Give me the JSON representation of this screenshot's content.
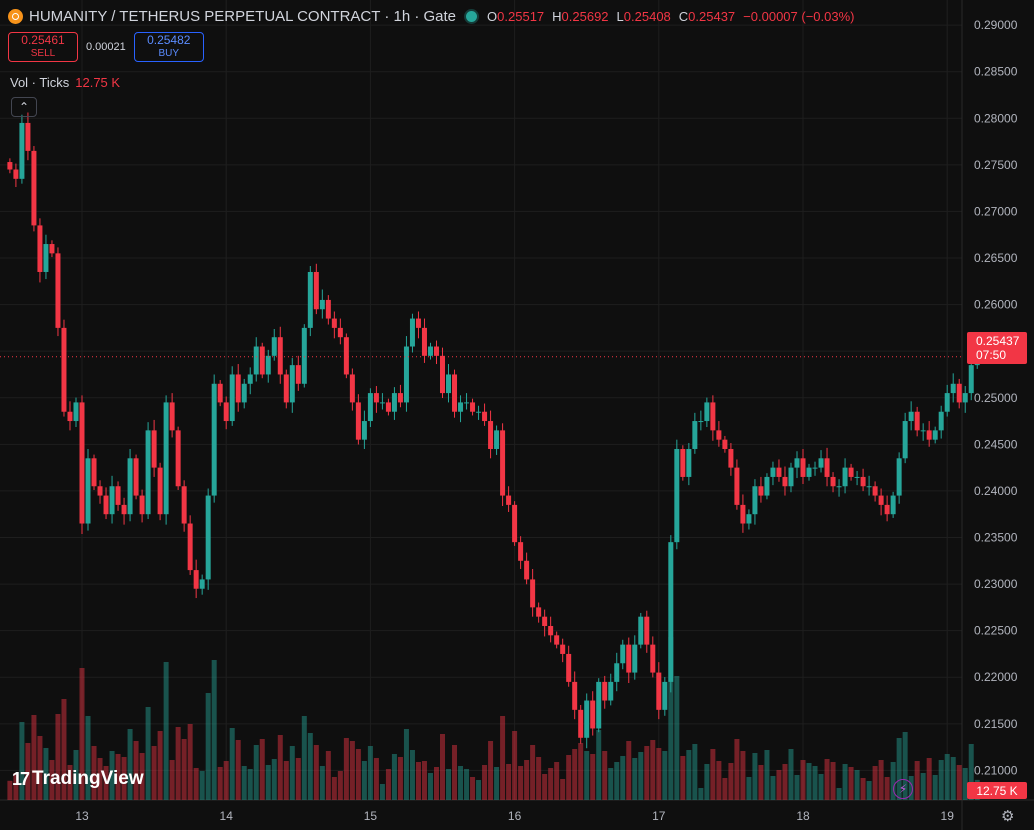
{
  "header": {
    "title": "HUMANITY / TETHERUS PERPETUAL CONTRACT · 1h · Gate",
    "ohlc": {
      "o_label": "O",
      "o": "0.25517",
      "h_label": "H",
      "h": "0.25692",
      "l_label": "L",
      "l": "0.25408",
      "c_label": "C",
      "c": "0.25437",
      "change": "−0.00007 (−0.03%)"
    }
  },
  "trade": {
    "sell_price": "0.25461",
    "sell_label": "SELL",
    "spread": "0.00021",
    "buy_price": "0.25482",
    "buy_label": "BUY"
  },
  "volume_legend": {
    "label": "Vol · Ticks",
    "value": "12.75 K"
  },
  "last_price_tag": {
    "price": "0.25437",
    "countdown": "07:50"
  },
  "volume_tag": "12.75 K",
  "branding": "TradingView",
  "icons": {
    "logo": "humanity-coin-icon",
    "status": "market-open-dot-icon",
    "collapse": "chevron-up-icon",
    "bolt": "lightning-icon",
    "settings": "gear-icon"
  },
  "colors": {
    "up": "#26a69a",
    "down": "#f23645",
    "background": "#0f0f0f",
    "grid": "#1e1e1e"
  },
  "chart_data": {
    "type": "candlestick",
    "interval": "1h",
    "price_axis_labels": [
      "0.29000",
      "0.28500",
      "0.28000",
      "0.27500",
      "0.27000",
      "0.26500",
      "0.26000",
      "0.25500",
      "0.25000",
      "0.24500",
      "0.24000",
      "0.23500",
      "0.23000",
      "0.22500",
      "0.22000",
      "0.21500",
      "0.21000"
    ],
    "time_axis_labels": [
      "13",
      "14",
      "15",
      "16",
      "17",
      "18",
      "19"
    ],
    "ylim": [
      0.2065,
      0.2913
    ],
    "x_start": 12.5,
    "x_step_hours": 1,
    "close": [
      0.2745,
      0.2735,
      0.2795,
      0.2765,
      0.2685,
      0.2635,
      0.2665,
      0.2655,
      0.2575,
      0.2485,
      0.2475,
      0.2495,
      0.2365,
      0.2435,
      0.2405,
      0.2395,
      0.2375,
      0.2405,
      0.2385,
      0.2375,
      0.2435,
      0.2395,
      0.2375,
      0.2465,
      0.2425,
      0.2375,
      0.2495,
      0.2465,
      0.2405,
      0.2365,
      0.2315,
      0.2295,
      0.2305,
      0.2395,
      0.2515,
      0.2495,
      0.2475,
      0.2525,
      0.2495,
      0.2515,
      0.2525,
      0.2555,
      0.2525,
      0.2545,
      0.2565,
      0.2525,
      0.2495,
      0.2535,
      0.2515,
      0.2575,
      0.2635,
      0.2595,
      0.2605,
      0.2585,
      0.2575,
      0.2565,
      0.2525,
      0.2495,
      0.2455,
      0.2475,
      0.2505,
      0.2495,
      0.2495,
      0.2485,
      0.2505,
      0.2495,
      0.2555,
      0.2585,
      0.2575,
      0.2545,
      0.2555,
      0.2545,
      0.2505,
      0.2525,
      0.2485,
      0.2495,
      0.2495,
      0.2485,
      0.2485,
      0.2475,
      0.2445,
      0.2465,
      0.2395,
      0.2385,
      0.2345,
      0.2325,
      0.2305,
      0.2275,
      0.2265,
      0.2255,
      0.2245,
      0.2235,
      0.2225,
      0.2195,
      0.2165,
      0.2135,
      0.2175,
      0.2145,
      0.2195,
      0.2175,
      0.2195,
      0.2215,
      0.2235,
      0.2205,
      0.2235,
      0.2265,
      0.2235,
      0.2205,
      0.2165,
      0.2195,
      0.2345,
      0.2445,
      0.2415,
      0.2445,
      0.2475,
      0.2475,
      0.2495,
      0.2465,
      0.2455,
      0.2445,
      0.2425,
      0.2385,
      0.2365,
      0.2375,
      0.2405,
      0.2395,
      0.2415,
      0.2425,
      0.2415,
      0.2405,
      0.2425,
      0.2435,
      0.2415,
      0.2425,
      0.2425,
      0.2435,
      0.2415,
      0.2405,
      0.2405,
      0.2425,
      0.2415,
      0.2415,
      0.2405,
      0.2405,
      0.2395,
      0.2385,
      0.2375,
      0.2395,
      0.2435,
      0.2475,
      0.2485,
      0.2465,
      0.2465,
      0.2455,
      0.2465,
      0.2485,
      0.2505,
      0.2515,
      0.2495,
      0.2505,
      0.2535,
      0.2544
    ]
  }
}
